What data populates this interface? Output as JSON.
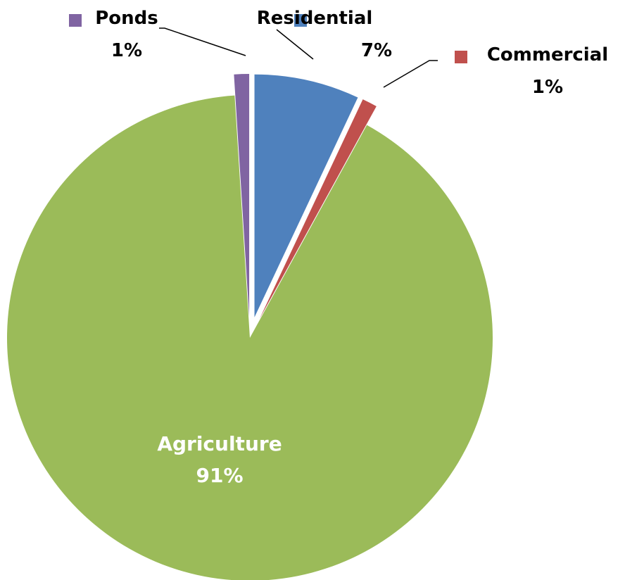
{
  "chart_data": {
    "type": "pie",
    "title": "",
    "slices": [
      {
        "name": "Residential",
        "value": 7,
        "label": "7%",
        "color": "#4F81BD"
      },
      {
        "name": "Commercial",
        "value": 1,
        "label": "1%",
        "color": "#C0504D"
      },
      {
        "name": "Agriculture",
        "value": 91,
        "label": "91%",
        "color": "#9BBB59"
      },
      {
        "name": "Ponds",
        "value": 1,
        "label": "1%",
        "color": "#8064A2"
      }
    ],
    "exploded": [
      "Residential",
      "Commercial",
      "Ponds"
    ],
    "start_angle": "12 o'clock",
    "direction": "clockwise",
    "legend": "none",
    "label_style": "category name and percentage; legend key square beside outside labels"
  }
}
